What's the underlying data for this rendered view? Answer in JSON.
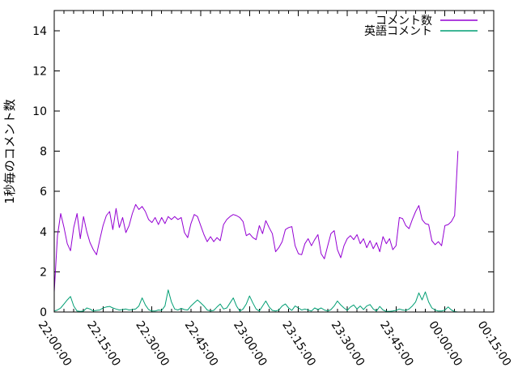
{
  "chart_data": {
    "type": "line",
    "title": "",
    "xlabel": "",
    "ylabel": "1秒毎のコメント数",
    "x_tick_labels": [
      "22:00:00",
      "22:15:00",
      "22:30:00",
      "22:45:00",
      "23:00:00",
      "23:15:00",
      "23:30:00",
      "23:45:00",
      "00:00:00",
      "00:15:00"
    ],
    "x_range_minutes": [
      0,
      135
    ],
    "x_major_tick_interval_minutes": 15,
    "x_minor_tick_interval_minutes": 3,
    "y_ticks": [
      0,
      2,
      4,
      6,
      8,
      10,
      12,
      14
    ],
    "ylim": [
      0,
      15
    ],
    "grid": false,
    "legend": {
      "position": "top-right-inside"
    },
    "colors": {
      "background": "#ffffff",
      "axis": "#000000",
      "text": "#000000"
    },
    "series": [
      {
        "name": "コメント数",
        "color": "#9400d3",
        "start_time": "22:00:00",
        "step_minutes": 1,
        "values": [
          1.0,
          3.8,
          4.9,
          4.2,
          3.4,
          3.05,
          4.2,
          4.9,
          3.65,
          4.75,
          4.0,
          3.45,
          3.1,
          2.85,
          3.6,
          4.3,
          4.8,
          5.0,
          4.1,
          5.15,
          4.2,
          4.7,
          3.95,
          4.3,
          4.9,
          5.35,
          5.1,
          5.25,
          5.0,
          4.6,
          4.45,
          4.7,
          4.35,
          4.7,
          4.4,
          4.75,
          4.6,
          4.75,
          4.6,
          4.7,
          3.95,
          3.7,
          4.4,
          4.85,
          4.75,
          4.3,
          3.85,
          3.5,
          3.75,
          3.5,
          3.7,
          3.55,
          4.35,
          4.6,
          4.75,
          4.85,
          4.8,
          4.7,
          4.5,
          3.8,
          3.9,
          3.7,
          3.6,
          4.3,
          3.9,
          4.55,
          4.2,
          3.9,
          3.0,
          3.2,
          3.5,
          4.1,
          4.2,
          4.25,
          3.3,
          2.9,
          2.85,
          3.4,
          3.65,
          3.3,
          3.6,
          3.85,
          2.9,
          2.65,
          3.3,
          3.9,
          4.05,
          3.1,
          2.7,
          3.3,
          3.65,
          3.8,
          3.6,
          3.85,
          3.4,
          3.65,
          3.2,
          3.55,
          3.15,
          3.45,
          3.0,
          3.75,
          3.4,
          3.65,
          3.1,
          3.3,
          4.7,
          4.65,
          4.3,
          4.15,
          4.6,
          5.0,
          5.3,
          4.6,
          4.4,
          4.35,
          3.55,
          3.35,
          3.5,
          3.3,
          4.3,
          4.35,
          4.5,
          4.8,
          8.0
        ]
      },
      {
        "name": "英語コメント",
        "color": "#009e73",
        "start_time": "22:00:00",
        "step_minutes": 1,
        "values": [
          0.05,
          0.1,
          0.2,
          0.4,
          0.6,
          0.77,
          0.3,
          0.05,
          0.03,
          0.05,
          0.2,
          0.15,
          0.05,
          0.08,
          0.1,
          0.2,
          0.25,
          0.28,
          0.2,
          0.15,
          0.1,
          0.12,
          0.15,
          0.1,
          0.12,
          0.15,
          0.3,
          0.7,
          0.35,
          0.12,
          0.05,
          0.05,
          0.1,
          0.08,
          0.3,
          1.1,
          0.5,
          0.15,
          0.1,
          0.18,
          0.12,
          0.1,
          0.3,
          0.45,
          0.6,
          0.45,
          0.3,
          0.1,
          0.05,
          0.08,
          0.25,
          0.4,
          0.15,
          0.2,
          0.45,
          0.7,
          0.3,
          0.05,
          0.15,
          0.4,
          0.8,
          0.45,
          0.15,
          0.05,
          0.3,
          0.55,
          0.25,
          0.08,
          0.05,
          0.1,
          0.3,
          0.4,
          0.2,
          0.08,
          0.3,
          0.2,
          0.1,
          0.15,
          0.1,
          0.05,
          0.2,
          0.12,
          0.2,
          0.1,
          0.05,
          0.12,
          0.3,
          0.55,
          0.35,
          0.2,
          0.08,
          0.25,
          0.35,
          0.15,
          0.3,
          0.12,
          0.3,
          0.37,
          0.15,
          0.05,
          0.28,
          0.1,
          0.03,
          0.03,
          0.05,
          0.08,
          0.15,
          0.1,
          0.08,
          0.15,
          0.3,
          0.5,
          0.95,
          0.6,
          1.0,
          0.5,
          0.2,
          0.1,
          0.05,
          0.05,
          0.1,
          0.25,
          0.1,
          0.02,
          0.0
        ]
      }
    ]
  }
}
